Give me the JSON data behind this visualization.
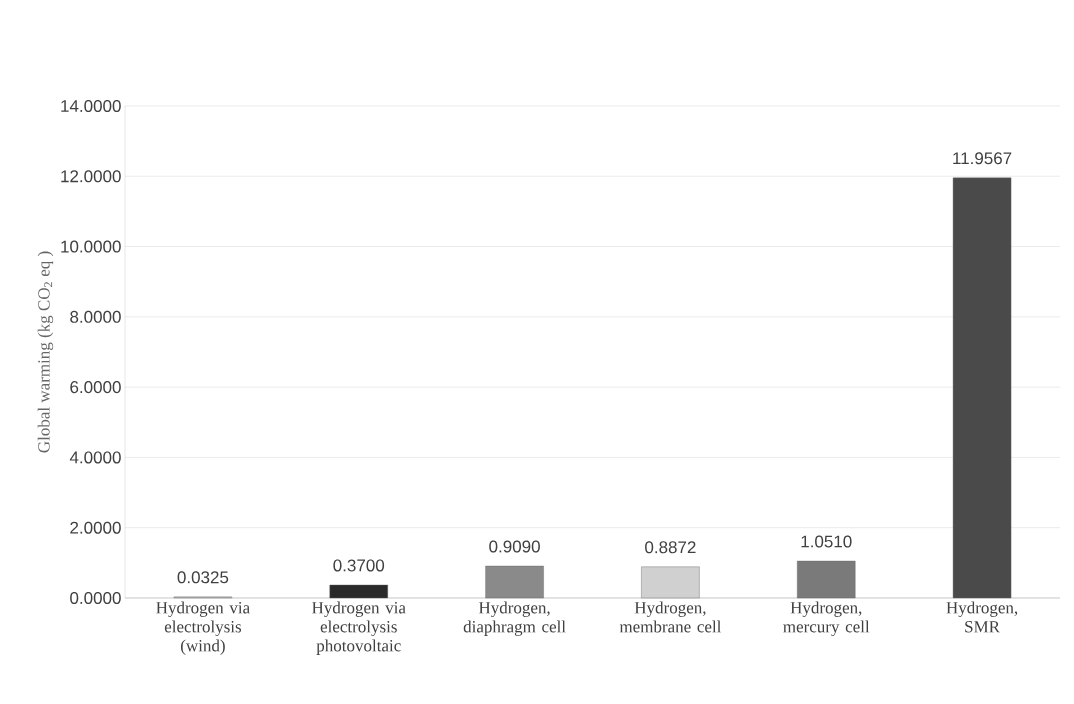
{
  "chart_data": {
    "type": "bar",
    "ylabel": "Global warming (kg CO$_{2}$ eq )",
    "categories": [
      "Hydrogen via electrolysis (wind)",
      "Hydrogen via electrolysis photovoltaic",
      "Hydrogen, diaphragm cell",
      "Hydrogen, membrane cell",
      "Hydrogen, mercury cell",
      "Hydrogen, SMR"
    ],
    "values": [
      0.0325,
      0.37,
      0.909,
      0.8872,
      1.051,
      11.9567
    ],
    "value_labels": [
      "0.0325",
      "0.3700",
      "0.9090",
      "0.8872",
      "1.0510",
      "11.9567"
    ],
    "colors": [
      "#bbbbbb",
      "#2a2a2a",
      "#8a8a8a",
      "#d0d0d0",
      "#7a7a7a",
      "#4a4a4a"
    ],
    "ylim": [
      0,
      14
    ],
    "yticks": [
      {
        "value": 0,
        "label": "0.0000"
      },
      {
        "value": 2,
        "label": "2.0000"
      },
      {
        "value": 4,
        "label": "4.0000"
      },
      {
        "value": 6,
        "label": "6.0000"
      },
      {
        "value": 8,
        "label": "8.0000"
      },
      {
        "value": 10,
        "label": "10.0000"
      },
      {
        "value": 12,
        "label": "12.0000"
      },
      {
        "value": 14,
        "label": "14.0000"
      }
    ],
    "grid": "y"
  }
}
